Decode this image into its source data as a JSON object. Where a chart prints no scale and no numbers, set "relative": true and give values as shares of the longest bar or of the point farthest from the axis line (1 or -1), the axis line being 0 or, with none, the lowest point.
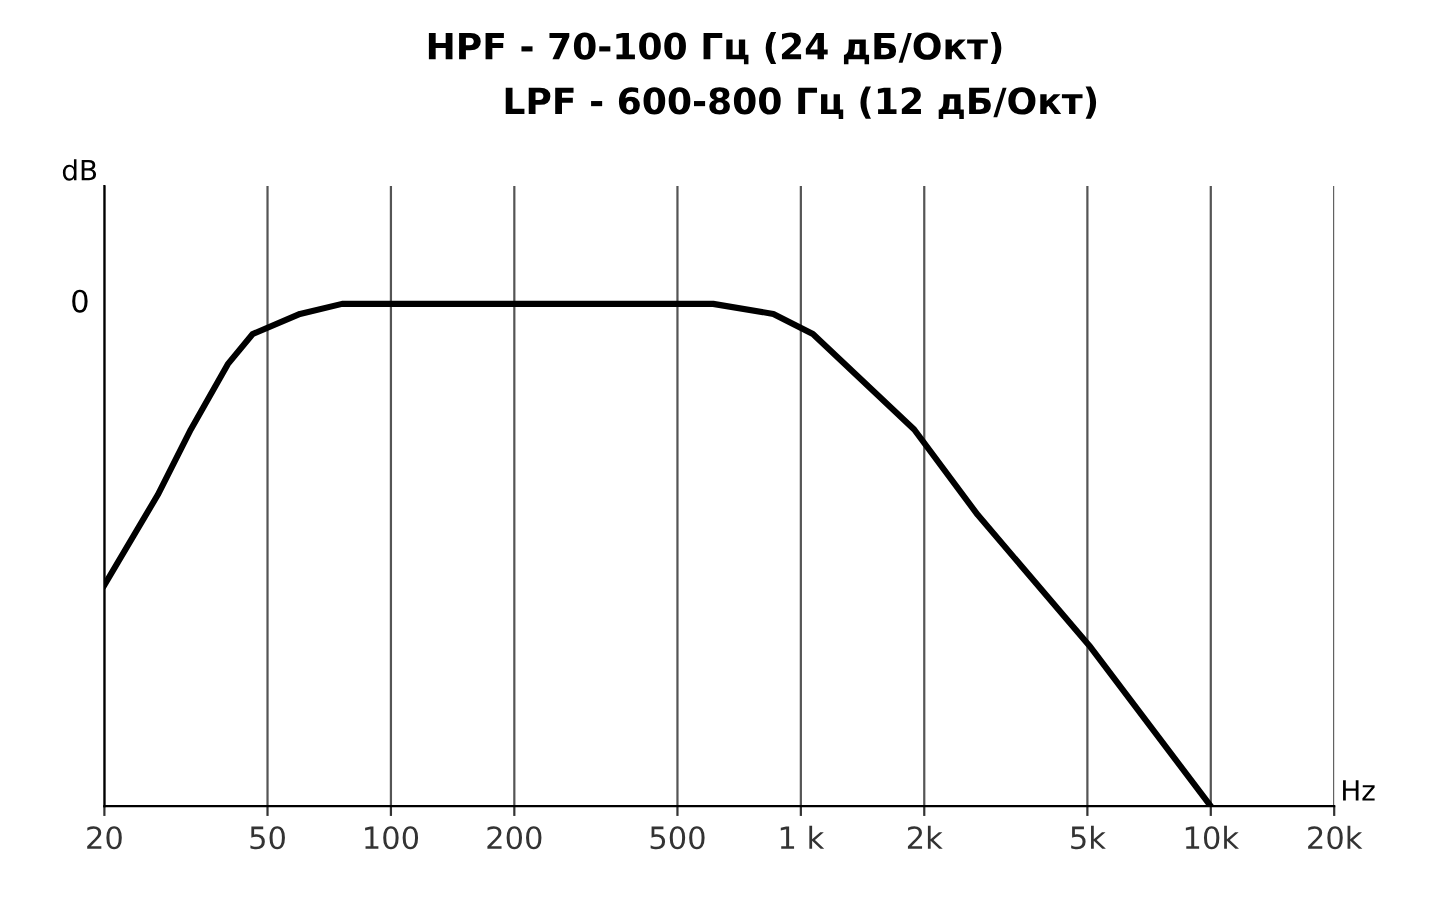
{
  "chart_data": {
    "type": "line",
    "title": "HPF - 70-100 Гц (24 дБ/Окт)",
    "subtitle": "LPF - 600-800 Гц (12 дБ/Окт)",
    "xlabel": "Hz",
    "ylabel": "dB",
    "relative": true,
    "log": "x",
    "x": [
      20,
      27,
      32.5,
      40,
      46,
      60,
      76,
      300,
      611,
      857,
      1070,
      1890,
      2700,
      5050,
      10000
    ],
    "series": [
      {
        "color": "#000000",
        "values": [
          0.44,
          0.62,
          0.75,
          0.88,
          0.94,
          0.98,
          1,
          1,
          1,
          0.98,
          0.94,
          0.75,
          0.58,
          0.32,
          0
        ]
      }
    ],
    "xlim": [
      20,
      20000
    ],
    "xticks": [
      20,
      50,
      100,
      200,
      500,
      {
        "value": 1000,
        "label": "1 k"
      },
      {
        "value": 2000,
        "label": "2k"
      },
      {
        "value": 5000,
        "label": "5k"
      },
      {
        "value": 10000,
        "label": "10k"
      },
      {
        "value": 20000,
        "label": "20k"
      }
    ],
    "annotations": [
      "0"
    ],
    "grid": "x",
    "marker": "none",
    "line_style": "solid"
  }
}
